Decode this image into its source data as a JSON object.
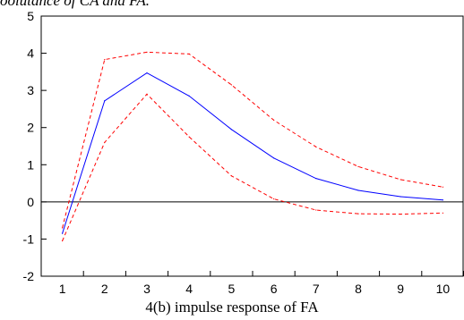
{
  "caption_top": "oolutance of CA and FA.",
  "caption_bottom": "4(b) impulse response of FA",
  "chart_data": {
    "type": "line",
    "title": "",
    "xlabel": "",
    "ylabel": "",
    "x": [
      1,
      2,
      3,
      4,
      5,
      6,
      7,
      8,
      9,
      10
    ],
    "ylim": [
      -2,
      5
    ],
    "yticks": [
      -2,
      -1,
      0,
      1,
      2,
      3,
      4,
      5
    ],
    "xticks": [
      1,
      2,
      3,
      4,
      5,
      6,
      7,
      8,
      9,
      10
    ],
    "zero_line": true,
    "grid": false,
    "series": [
      {
        "key": "response",
        "values": [
          -0.85,
          2.72,
          3.47,
          2.85,
          1.95,
          1.18,
          0.63,
          0.31,
          0.14,
          0.05
        ],
        "color": "#0000ff",
        "style": "solid"
      },
      {
        "key": "upper_band",
        "values": [
          -0.7,
          3.83,
          4.03,
          3.98,
          3.15,
          2.2,
          1.48,
          0.95,
          0.6,
          0.4
        ],
        "color": "#ff0000",
        "style": "dashed"
      },
      {
        "key": "lower_band",
        "values": [
          -1.05,
          1.6,
          2.9,
          1.75,
          0.7,
          0.08,
          -0.22,
          -0.32,
          -0.33,
          -0.3
        ],
        "color": "#ff0000",
        "style": "dashed"
      }
    ]
  }
}
